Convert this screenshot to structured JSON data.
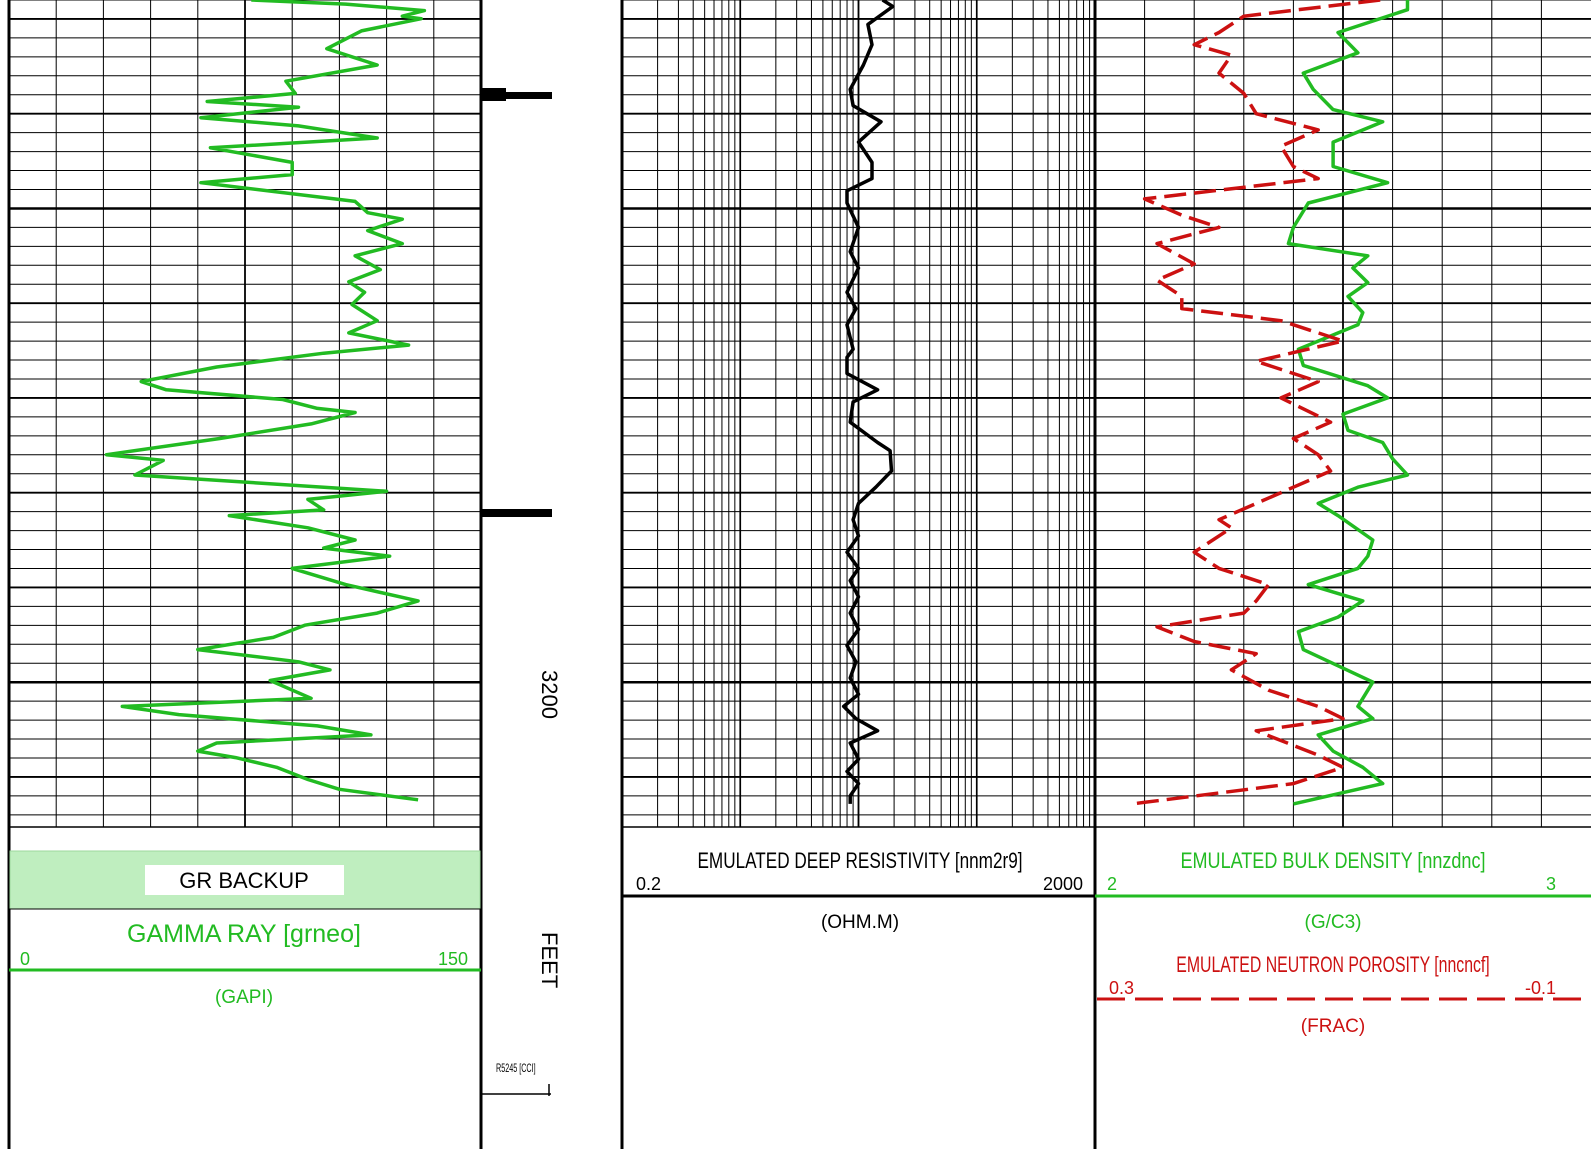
{
  "colors": {
    "gamma": "#22bb22",
    "resistivity": "#000000",
    "density": "#22bb22",
    "neutron": "#cc1111",
    "grid": "#000000",
    "gr_backup_fill": "#bfeebf"
  },
  "depth_track": {
    "depth_label": "3200",
    "unit_label": "FEET",
    "scale_label": "R5245 [CCI]"
  },
  "gr_track": {
    "backup_label": "GR BACKUP",
    "curve_title": "GAMMA RAY [grneo]",
    "scale_min": "0",
    "scale_max": "150",
    "unit": "(GAPI)"
  },
  "res_track": {
    "curve_title": "EMULATED DEEP RESISTIVITY [nnm2r9]",
    "scale_min": "0.2",
    "scale_max": "2000",
    "unit": "(OHM.M)"
  },
  "den_track": {
    "density_title": "EMULATED BULK DENSITY [nnzdnc]",
    "density_min": "2",
    "density_max": "3",
    "density_unit": "(G/C3)",
    "neutron_title": "EMULATED NEUTRON POROSITY [nncncf]",
    "neutron_min": "0.3",
    "neutron_max": "-0.1",
    "neutron_unit": "(FRAC)"
  },
  "chart_data": {
    "type": "line",
    "depth_marker": 3200,
    "y_unit": "FEET",
    "series": [
      {
        "name": "GAMMA RAY [grneo]",
        "unit": "(GAPI)",
        "scale": [
          0,
          150
        ],
        "x_axis": "linear",
        "values": [
          [
            0.0,
            77
          ],
          [
            0.005,
            107
          ],
          [
            0.013,
            132
          ],
          [
            0.02,
            125
          ],
          [
            0.023,
            131
          ],
          [
            0.038,
            112
          ],
          [
            0.06,
            101
          ],
          [
            0.08,
            117
          ],
          [
            0.1,
            88
          ],
          [
            0.115,
            91
          ],
          [
            0.125,
            63
          ],
          [
            0.132,
            92
          ],
          [
            0.145,
            61
          ],
          [
            0.155,
            92
          ],
          [
            0.17,
            117
          ],
          [
            0.182,
            64
          ],
          [
            0.2,
            90
          ],
          [
            0.215,
            90
          ],
          [
            0.225,
            61
          ],
          [
            0.248,
            110
          ],
          [
            0.262,
            114
          ],
          [
            0.27,
            125
          ],
          [
            0.284,
            114
          ],
          [
            0.3,
            125
          ],
          [
            0.315,
            110
          ],
          [
            0.332,
            118
          ],
          [
            0.347,
            108
          ],
          [
            0.36,
            113
          ],
          [
            0.375,
            109
          ],
          [
            0.395,
            117
          ],
          [
            0.41,
            108
          ],
          [
            0.425,
            127
          ],
          [
            0.435,
            100
          ],
          [
            0.452,
            66
          ],
          [
            0.47,
            42
          ],
          [
            0.48,
            50
          ],
          [
            0.492,
            87
          ],
          [
            0.503,
            98
          ],
          [
            0.508,
            110
          ],
          [
            0.522,
            96
          ],
          [
            0.54,
            67
          ],
          [
            0.56,
            31
          ],
          [
            0.567,
            49
          ],
          [
            0.585,
            40
          ],
          [
            0.605,
            120
          ],
          [
            0.615,
            95
          ],
          [
            0.628,
            100
          ],
          [
            0.635,
            70
          ],
          [
            0.65,
            95
          ],
          [
            0.665,
            110
          ],
          [
            0.675,
            100
          ],
          [
            0.685,
            121
          ],
          [
            0.7,
            90
          ],
          [
            0.72,
            107
          ],
          [
            0.74,
            130
          ],
          [
            0.755,
            117
          ],
          [
            0.77,
            94
          ],
          [
            0.785,
            84
          ],
          [
            0.8,
            60
          ],
          [
            0.815,
            92
          ],
          [
            0.825,
            102
          ],
          [
            0.838,
            83
          ],
          [
            0.86,
            96
          ],
          [
            0.87,
            36
          ],
          [
            0.88,
            54
          ],
          [
            0.894,
            98
          ],
          [
            0.905,
            115
          ],
          [
            0.915,
            66
          ],
          [
            0.925,
            60
          ],
          [
            0.933,
            72
          ],
          [
            0.945,
            85
          ],
          [
            0.96,
            95
          ],
          [
            0.972,
            105
          ],
          [
            0.985,
            130
          ]
        ]
      },
      {
        "name": "EMULATED DEEP RESISTIVITY [nnm2r9]",
        "unit": "(OHM.M)",
        "scale": [
          0.2,
          2000
        ],
        "x_axis": "log",
        "values": [
          [
            0.0,
            32
          ],
          [
            0.008,
            39
          ],
          [
            0.03,
            24
          ],
          [
            0.055,
            26
          ],
          [
            0.08,
            22
          ],
          [
            0.11,
            17
          ],
          [
            0.13,
            18
          ],
          [
            0.15,
            31
          ],
          [
            0.175,
            20
          ],
          [
            0.2,
            26
          ],
          [
            0.22,
            26
          ],
          [
            0.235,
            16
          ],
          [
            0.25,
            16
          ],
          [
            0.28,
            20
          ],
          [
            0.31,
            17
          ],
          [
            0.33,
            20
          ],
          [
            0.36,
            16
          ],
          [
            0.38,
            19
          ],
          [
            0.4,
            16
          ],
          [
            0.43,
            18
          ],
          [
            0.44,
            16
          ],
          [
            0.46,
            16
          ],
          [
            0.48,
            29
          ],
          [
            0.495,
            18
          ],
          [
            0.52,
            17
          ],
          [
            0.545,
            29
          ],
          [
            0.555,
            37
          ],
          [
            0.58,
            38
          ],
          [
            0.6,
            28
          ],
          [
            0.62,
            20
          ],
          [
            0.64,
            18
          ],
          [
            0.66,
            20
          ],
          [
            0.68,
            16
          ],
          [
            0.7,
            20
          ],
          [
            0.715,
            17
          ],
          [
            0.735,
            20
          ],
          [
            0.755,
            17
          ],
          [
            0.775,
            20
          ],
          [
            0.795,
            16
          ],
          [
            0.815,
            19
          ],
          [
            0.835,
            17
          ],
          [
            0.855,
            20
          ],
          [
            0.87,
            15
          ],
          [
            0.885,
            19
          ],
          [
            0.9,
            29
          ],
          [
            0.915,
            17
          ],
          [
            0.935,
            20
          ],
          [
            0.95,
            16
          ],
          [
            0.965,
            20
          ],
          [
            0.98,
            17
          ],
          [
            0.99,
            17
          ]
        ]
      },
      {
        "name": "EMULATED BULK DENSITY [nnzdnc]",
        "unit": "(G/C3)",
        "scale": [
          2,
          3
        ],
        "x_axis": "linear",
        "values": [
          [
            0.0,
            2.63
          ],
          [
            0.012,
            2.63
          ],
          [
            0.04,
            2.49
          ],
          [
            0.065,
            2.53
          ],
          [
            0.09,
            2.42
          ],
          [
            0.11,
            2.44
          ],
          [
            0.135,
            2.48
          ],
          [
            0.15,
            2.58
          ],
          [
            0.175,
            2.48
          ],
          [
            0.205,
            2.48
          ],
          [
            0.225,
            2.59
          ],
          [
            0.25,
            2.43
          ],
          [
            0.28,
            2.4
          ],
          [
            0.3,
            2.39
          ],
          [
            0.315,
            2.55
          ],
          [
            0.33,
            2.52
          ],
          [
            0.348,
            2.55
          ],
          [
            0.365,
            2.51
          ],
          [
            0.385,
            2.54
          ],
          [
            0.4,
            2.53
          ],
          [
            0.43,
            2.41
          ],
          [
            0.45,
            2.42
          ],
          [
            0.475,
            2.55
          ],
          [
            0.49,
            2.59
          ],
          [
            0.51,
            2.5
          ],
          [
            0.53,
            2.51
          ],
          [
            0.545,
            2.58
          ],
          [
            0.565,
            2.6
          ],
          [
            0.585,
            2.63
          ],
          [
            0.6,
            2.53
          ],
          [
            0.62,
            2.45
          ],
          [
            0.635,
            2.49
          ],
          [
            0.665,
            2.56
          ],
          [
            0.685,
            2.55
          ],
          [
            0.7,
            2.53
          ],
          [
            0.72,
            2.43
          ],
          [
            0.74,
            2.54
          ],
          [
            0.76,
            2.49
          ],
          [
            0.778,
            2.41
          ],
          [
            0.8,
            2.42
          ],
          [
            0.84,
            2.56
          ],
          [
            0.87,
            2.53
          ],
          [
            0.885,
            2.56
          ],
          [
            0.905,
            2.45
          ],
          [
            0.925,
            2.48
          ],
          [
            0.945,
            2.54
          ],
          [
            0.965,
            2.58
          ],
          [
            0.99,
            2.4
          ]
        ]
      },
      {
        "name": "EMULATED NEUTRON POROSITY [nncncf]",
        "unit": "(FRAC)",
        "scale": [
          0.3,
          -0.1
        ],
        "x_axis": "linear",
        "values": [
          [
            0.0,
            0.07
          ],
          [
            0.02,
            0.18
          ],
          [
            0.04,
            0.2
          ],
          [
            0.055,
            0.22
          ],
          [
            0.068,
            0.19
          ],
          [
            0.09,
            0.2
          ],
          [
            0.115,
            0.18
          ],
          [
            0.14,
            0.17
          ],
          [
            0.16,
            0.12
          ],
          [
            0.18,
            0.15
          ],
          [
            0.205,
            0.14
          ],
          [
            0.22,
            0.12
          ],
          [
            0.245,
            0.26
          ],
          [
            0.265,
            0.23
          ],
          [
            0.28,
            0.2
          ],
          [
            0.3,
            0.25
          ],
          [
            0.325,
            0.22
          ],
          [
            0.345,
            0.25
          ],
          [
            0.365,
            0.23
          ],
          [
            0.38,
            0.23
          ],
          [
            0.395,
            0.15
          ],
          [
            0.42,
            0.1
          ],
          [
            0.445,
            0.17
          ],
          [
            0.47,
            0.12
          ],
          [
            0.49,
            0.15
          ],
          [
            0.52,
            0.11
          ],
          [
            0.54,
            0.14
          ],
          [
            0.56,
            0.12
          ],
          [
            0.58,
            0.11
          ],
          [
            0.6,
            0.14
          ],
          [
            0.64,
            0.2
          ],
          [
            0.65,
            0.19
          ],
          [
            0.68,
            0.22
          ],
          [
            0.7,
            0.2
          ],
          [
            0.72,
            0.16
          ],
          [
            0.74,
            0.17
          ],
          [
            0.755,
            0.18
          ],
          [
            0.772,
            0.25
          ],
          [
            0.79,
            0.22
          ],
          [
            0.805,
            0.17
          ],
          [
            0.825,
            0.19
          ],
          [
            0.85,
            0.16
          ],
          [
            0.87,
            0.12
          ],
          [
            0.885,
            0.1
          ],
          [
            0.9,
            0.17
          ],
          [
            0.93,
            0.12
          ],
          [
            0.945,
            0.1
          ],
          [
            0.965,
            0.14
          ],
          [
            0.99,
            0.27
          ]
        ]
      }
    ]
  }
}
